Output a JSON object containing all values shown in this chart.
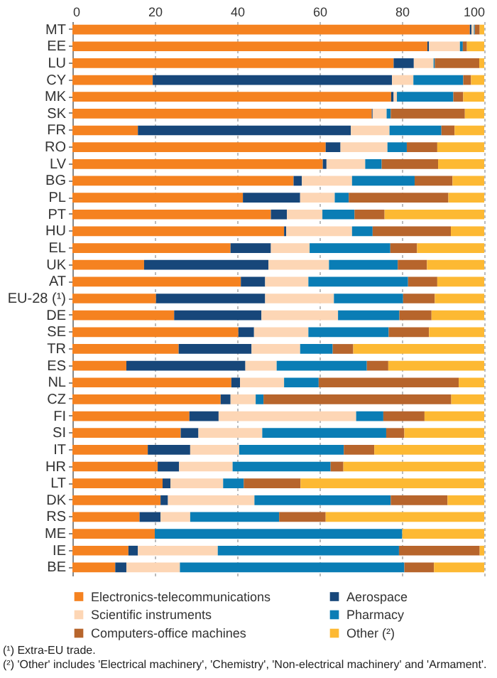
{
  "chart_data": {
    "type": "bar",
    "orientation": "horizontal",
    "stacked": true,
    "categories": [
      "MT",
      "EE",
      "LU",
      "CY",
      "MK",
      "SK",
      "FR",
      "RO",
      "LV",
      "BG",
      "PL",
      "PT",
      "HU",
      "EL",
      "UK",
      "AT",
      "EU-28 (¹)",
      "DE",
      "SE",
      "TR",
      "ES",
      "NL",
      "CZ",
      "FI",
      "SI",
      "IT",
      "HR",
      "LT",
      "DK",
      "RS",
      "ME",
      "IE",
      "BE"
    ],
    "series": [
      {
        "name": "Electronics-telecommunications",
        "color": "#f58220",
        "values": [
          96.5,
          86.2,
          78.0,
          19.5,
          77.4,
          72.7,
          15.9,
          61.5,
          60.8,
          53.7,
          41.4,
          48.2,
          51.4,
          38.4,
          17.4,
          40.9,
          20.3,
          24.7,
          40.3,
          25.8,
          13.1,
          38.6,
          36.0,
          28.4,
          26.3,
          18.3,
          20.7,
          21.9,
          21.4,
          16.3,
          20.0,
          13.6,
          10.4
        ]
      },
      {
        "name": "Aerospace",
        "color": "#17477a",
        "values": [
          0.4,
          0.4,
          4.9,
          58.1,
          0.6,
          0.2,
          51.7,
          3.6,
          0.9,
          2.0,
          13.9,
          3.9,
          0.5,
          9.8,
          30.2,
          5.9,
          26.5,
          21.2,
          3.8,
          17.7,
          28.9,
          2.1,
          2.4,
          7.1,
          4.3,
          10.3,
          5.2,
          1.9,
          1.8,
          5.1,
          0,
          2.3,
          2.7
        ]
      },
      {
        "name": "Scientific instruments",
        "color": "#fdd6b5",
        "values": [
          0.6,
          7.5,
          4.8,
          5.2,
          0.8,
          3.4,
          9.4,
          11.4,
          9.4,
          12.2,
          8.4,
          8.6,
          16.0,
          9.4,
          14.7,
          10.5,
          16.7,
          18.6,
          13.2,
          11.8,
          7.6,
          10.7,
          6.1,
          33.4,
          15.5,
          11.9,
          13.0,
          12.8,
          21.0,
          7.2,
          0,
          19.4,
          13.0
        ]
      },
      {
        "name": "Pharmacy",
        "color": "#0a7db5",
        "values": [
          0.2,
          0.7,
          0.3,
          12.1,
          13.7,
          1.0,
          12.6,
          4.7,
          4.0,
          15.2,
          3.4,
          7.8,
          5.0,
          19.6,
          16.7,
          24.2,
          16.8,
          14.9,
          19.5,
          7.9,
          21.9,
          8.4,
          1.9,
          6.6,
          30.1,
          25.4,
          23.8,
          5.0,
          33.1,
          21.6,
          60.1,
          44.0,
          54.5
        ]
      },
      {
        "name": "Computers-office machines",
        "color": "#b7652c",
        "values": [
          1.2,
          1.0,
          10.8,
          1.9,
          2.4,
          18.0,
          3.2,
          7.4,
          13.7,
          9.2,
          24.2,
          7.3,
          19.0,
          6.5,
          7.1,
          7.1,
          7.7,
          7.8,
          9.8,
          5.0,
          5.2,
          34.0,
          45.6,
          10.0,
          4.4,
          7.4,
          3.1,
          13.8,
          13.8,
          11.3,
          0,
          19.6,
          7.2
        ]
      },
      {
        "name": "Other (²)",
        "color": "#fdb933",
        "values": [
          1.1,
          4.2,
          1.2,
          3.2,
          5.1,
          4.7,
          7.2,
          11.4,
          11.2,
          7.7,
          8.7,
          24.2,
          8.1,
          16.3,
          13.9,
          11.4,
          12.0,
          12.8,
          13.4,
          31.8,
          23.3,
          6.2,
          8.0,
          14.5,
          19.4,
          26.7,
          34.2,
          44.6,
          8.9,
          38.5,
          19.9,
          1.1,
          12.2
        ]
      }
    ],
    "xlim": [
      0,
      100
    ],
    "xticks": [
      0,
      20,
      40,
      60,
      80,
      100
    ],
    "grid": "x",
    "legend": "bottom",
    "annotations": [
      "(¹) Extra-EU trade.",
      "(²) 'Other' includes 'Electrical machinery', 'Chemistry', 'Non-electrical machinery' and 'Armament'."
    ]
  }
}
